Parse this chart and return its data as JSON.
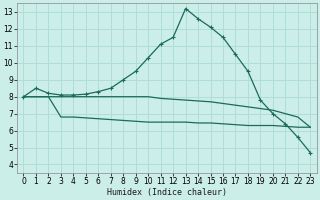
{
  "xlabel": "Humidex (Indice chaleur)",
  "bg_color": "#cceee8",
  "grid_color": "#b0ddd8",
  "line_color": "#1a6b5a",
  "xlim": [
    -0.5,
    23.5
  ],
  "ylim": [
    3.5,
    13.5
  ],
  "xticks": [
    0,
    1,
    2,
    3,
    4,
    5,
    6,
    7,
    8,
    9,
    10,
    11,
    12,
    13,
    14,
    15,
    16,
    17,
    18,
    19,
    20,
    21,
    22,
    23
  ],
  "yticks": [
    4,
    5,
    6,
    7,
    8,
    9,
    10,
    11,
    12,
    13
  ],
  "humidex": [
    8.0,
    8.5,
    8.2,
    8.1,
    8.1,
    8.15,
    8.3,
    8.5,
    9.0,
    9.5,
    10.3,
    11.1,
    11.5,
    13.2,
    12.6,
    12.1,
    11.5,
    10.5,
    9.5,
    7.8,
    7.0,
    6.4,
    5.6,
    4.7
  ],
  "upper": [
    8.0,
    8.0,
    8.0,
    8.0,
    8.0,
    8.0,
    8.0,
    8.0,
    8.0,
    8.0,
    8.0,
    7.9,
    7.85,
    7.8,
    7.75,
    7.7,
    7.6,
    7.5,
    7.4,
    7.3,
    7.2,
    7.0,
    6.8,
    6.2
  ],
  "lower": [
    8.0,
    8.0,
    8.0,
    6.8,
    6.8,
    6.75,
    6.7,
    6.65,
    6.6,
    6.55,
    6.5,
    6.5,
    6.5,
    6.5,
    6.45,
    6.45,
    6.4,
    6.35,
    6.3,
    6.3,
    6.3,
    6.25,
    6.2,
    6.2
  ]
}
